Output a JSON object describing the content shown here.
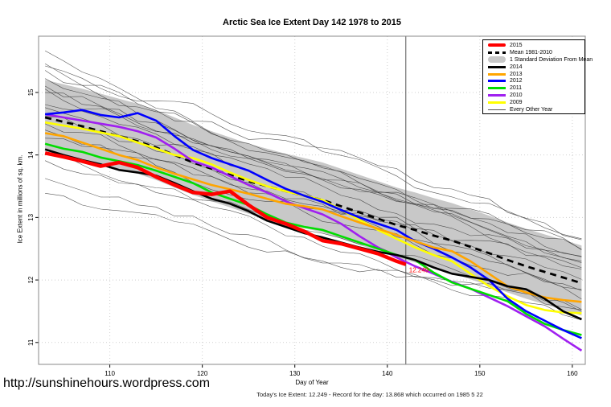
{
  "title": "Arctic Sea Ice Extent Day 142 1978 to 2015",
  "url_text": "http://sunshinehours.wordpress.com",
  "footer_note": "Today's Ice Extent: 12.249  - Record for the day: 13.868 which occurred on 1985 5 22",
  "annotation": {
    "text": "12.249",
    "day": 142,
    "value": 12.249,
    "color": "#ff0000"
  },
  "legend": {
    "items": [
      {
        "label": "2015",
        "color": "#ff0000",
        "swatch": "thick"
      },
      {
        "label": "Mean 1981-2010",
        "color": "#000000",
        "swatch": "dashed"
      },
      {
        "label": "1 Standard Deviation From Mean",
        "color": "#c8c8c8",
        "swatch": "band"
      },
      {
        "label": "2014",
        "color": "#000000",
        "swatch": "line"
      },
      {
        "label": "2013",
        "color": "#ffa500",
        "swatch": "line"
      },
      {
        "label": "2012",
        "color": "#0000ff",
        "swatch": "line"
      },
      {
        "label": "2011",
        "color": "#00dd00",
        "swatch": "line"
      },
      {
        "label": "2010",
        "color": "#a020f0",
        "swatch": "line"
      },
      {
        "label": "2009",
        "color": "#ffff00",
        "swatch": "line"
      },
      {
        "label": "Every Other Year",
        "color": "#555555",
        "swatch": "thin"
      }
    ]
  },
  "chart_data": {
    "type": "line",
    "title": "Arctic Sea Ice Extent Day 142 1978 to 2015",
    "xlabel": "Day of Year",
    "ylabel": "Ice Extent in millions of sq. km.",
    "xlim": [
      102.3,
      161.4
    ],
    "ylim": [
      10.65,
      15.9
    ],
    "xticks": [
      110,
      120,
      130,
      140,
      150,
      160
    ],
    "yticks": [
      11,
      12,
      13,
      14,
      15
    ],
    "grid": "dotted",
    "grid_color": "#cfcfcf",
    "border_color": "#888888",
    "vline": {
      "x": 142,
      "color": "#555555"
    },
    "days": [
      103,
      105,
      107,
      109,
      111,
      113,
      115,
      117,
      119,
      121,
      123,
      125,
      127,
      129,
      131,
      133,
      135,
      137,
      139,
      141,
      143,
      145,
      147,
      149,
      151,
      153,
      155,
      157,
      159,
      161
    ],
    "mean_series": {
      "name": "Mean 1981-2010",
      "color": "#000000",
      "style": "dashed",
      "width": 2.8,
      "values": [
        14.6,
        14.53,
        14.46,
        14.38,
        14.3,
        14.22,
        14.12,
        14.0,
        13.88,
        13.78,
        13.68,
        13.58,
        13.5,
        13.42,
        13.35,
        13.28,
        13.18,
        13.08,
        12.98,
        12.88,
        12.8,
        12.71,
        12.63,
        12.53,
        12.43,
        12.32,
        12.22,
        12.13,
        12.04,
        11.95
      ]
    },
    "band": {
      "name": "1 Standard Deviation From Mean",
      "color": "#c8c8c8",
      "upper": [
        15.2,
        15.13,
        15.06,
        14.98,
        14.9,
        14.82,
        14.72,
        14.6,
        14.48,
        14.38,
        14.28,
        14.18,
        14.1,
        14.02,
        13.95,
        13.88,
        13.78,
        13.68,
        13.58,
        13.48,
        13.4,
        13.31,
        13.23,
        13.13,
        13.03,
        12.92,
        12.82,
        12.73,
        12.64,
        12.55
      ],
      "lower": [
        14.08,
        14.01,
        13.94,
        13.86,
        13.78,
        13.7,
        13.6,
        13.48,
        13.36,
        13.26,
        13.16,
        13.06,
        12.98,
        12.9,
        12.83,
        12.76,
        12.66,
        12.56,
        12.46,
        12.36,
        12.28,
        12.19,
        12.11,
        12.01,
        11.91,
        11.8,
        11.7,
        11.61,
        11.52,
        11.43
      ]
    },
    "series": [
      {
        "name": "2009",
        "color": "#ffff00",
        "width": 2.6,
        "values": [
          14.52,
          14.47,
          14.42,
          14.36,
          14.3,
          14.2,
          14.1,
          14.0,
          13.95,
          13.85,
          13.72,
          13.6,
          13.5,
          13.42,
          13.35,
          13.28,
          13.12,
          12.96,
          12.8,
          12.66,
          12.52,
          12.4,
          12.3,
          12.1,
          11.9,
          11.74,
          11.6,
          11.52,
          11.48,
          11.47
        ]
      },
      {
        "name": "2010",
        "color": "#a020f0",
        "width": 2.6,
        "values": [
          14.65,
          14.6,
          14.55,
          14.5,
          14.45,
          14.38,
          14.28,
          14.1,
          13.9,
          13.8,
          13.66,
          13.52,
          13.4,
          13.26,
          13.15,
          13.05,
          12.9,
          12.7,
          12.52,
          12.36,
          12.22,
          12.1,
          11.97,
          11.86,
          11.72,
          11.58,
          11.42,
          11.26,
          11.06,
          10.87
        ]
      },
      {
        "name": "2011",
        "color": "#00dd00",
        "width": 2.6,
        "values": [
          14.18,
          14.1,
          14.05,
          13.96,
          13.9,
          13.84,
          13.75,
          13.65,
          13.55,
          13.4,
          13.3,
          13.2,
          13.05,
          12.92,
          12.85,
          12.8,
          12.7,
          12.6,
          12.5,
          12.4,
          12.32,
          12.12,
          11.96,
          11.86,
          11.76,
          11.66,
          11.46,
          11.3,
          11.2,
          11.12
        ]
      },
      {
        "name": "2012",
        "color": "#0000ff",
        "width": 2.6,
        "values": [
          14.65,
          14.68,
          14.72,
          14.64,
          14.6,
          14.67,
          14.55,
          14.3,
          14.08,
          13.95,
          13.85,
          13.75,
          13.6,
          13.46,
          13.35,
          13.25,
          13.12,
          13.0,
          12.9,
          12.8,
          12.62,
          12.5,
          12.36,
          12.2,
          12.0,
          11.7,
          11.5,
          11.35,
          11.2,
          11.07
        ]
      },
      {
        "name": "2013",
        "color": "#ffa500",
        "width": 2.6,
        "values": [
          14.35,
          14.3,
          14.2,
          14.1,
          14.0,
          13.92,
          13.8,
          13.7,
          13.61,
          13.52,
          13.45,
          13.38,
          13.3,
          13.22,
          13.18,
          13.13,
          13.02,
          12.92,
          12.82,
          12.72,
          12.62,
          12.52,
          12.46,
          12.3,
          12.1,
          11.9,
          11.8,
          11.72,
          11.68,
          11.65
        ]
      },
      {
        "name": "2014",
        "color": "#000000",
        "width": 2.6,
        "values": [
          14.09,
          14.0,
          13.92,
          13.85,
          13.76,
          13.72,
          13.67,
          13.55,
          13.42,
          13.3,
          13.22,
          13.1,
          12.95,
          12.85,
          12.75,
          12.68,
          12.6,
          12.52,
          12.45,
          12.4,
          12.32,
          12.2,
          12.1,
          12.05,
          12.0,
          11.9,
          11.85,
          11.7,
          11.5,
          11.37
        ]
      },
      {
        "name": "2015",
        "color": "#ff0000",
        "width": 4.5,
        "days": [
          103,
          105,
          107,
          109,
          111,
          113,
          115,
          117,
          119,
          121,
          123,
          125,
          127,
          129,
          131,
          133,
          135,
          137,
          139,
          141,
          142
        ],
        "values": [
          14.03,
          13.97,
          13.9,
          13.82,
          13.88,
          13.8,
          13.65,
          13.52,
          13.4,
          13.37,
          13.42,
          13.2,
          13.0,
          12.9,
          12.78,
          12.63,
          12.58,
          12.5,
          12.42,
          12.3,
          12.249
        ]
      }
    ],
    "background": {
      "name": "Every Other Year",
      "color": "#383838",
      "width": 0.6,
      "lines": [
        {
          "start": 15.6,
          "end": 12.6,
          "seed": 1
        },
        {
          "start": 15.5,
          "end": 12.65,
          "seed": 2
        },
        {
          "start": 15.45,
          "end": 12.38,
          "seed": 3
        },
        {
          "start": 15.3,
          "end": 12.5,
          "seed": 4
        },
        {
          "start": 15.2,
          "end": 12.18,
          "seed": 5
        },
        {
          "start": 15.1,
          "end": 12.45,
          "seed": 6
        },
        {
          "start": 15.05,
          "end": 12.25,
          "seed": 7
        },
        {
          "start": 14.95,
          "end": 12.58,
          "seed": 8
        },
        {
          "start": 14.85,
          "end": 11.98,
          "seed": 9
        },
        {
          "start": 14.75,
          "end": 12.32,
          "seed": 10
        },
        {
          "start": 14.6,
          "end": 11.82,
          "seed": 11
        },
        {
          "start": 14.5,
          "end": 12.08,
          "seed": 12
        },
        {
          "start": 14.35,
          "end": 11.7,
          "seed": 13
        },
        {
          "start": 14.2,
          "end": 11.9,
          "seed": 14
        },
        {
          "start": 14.05,
          "end": 11.56,
          "seed": 15
        },
        {
          "start": 13.9,
          "end": 11.42,
          "seed": 16
        },
        {
          "start": 13.6,
          "end": 11.3,
          "seed": 17
        },
        {
          "start": 13.35,
          "end": 11.5,
          "seed": 18
        }
      ]
    }
  }
}
